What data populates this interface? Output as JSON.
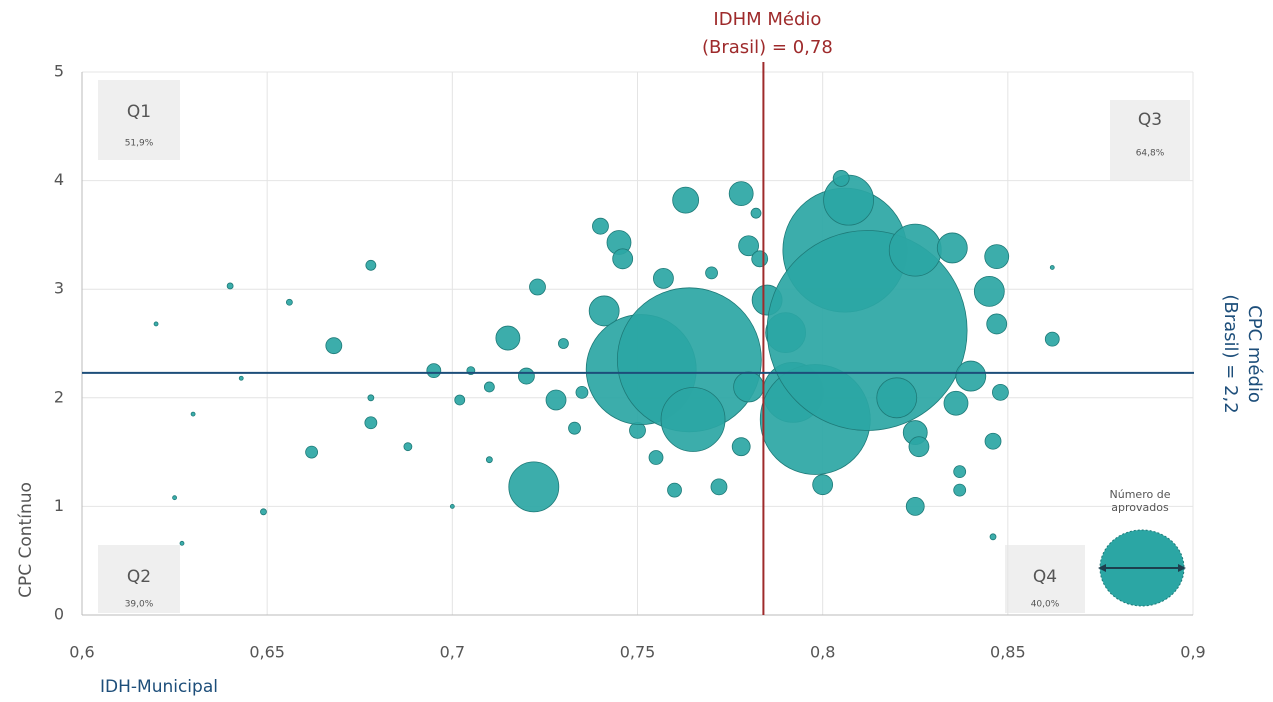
{
  "chart_data": {
    "type": "scatter",
    "x_label": "IDH-Municipal",
    "y_label": "CPC Contínuo",
    "xlim": [
      0.6,
      0.9
    ],
    "ylim": [
      0,
      5
    ],
    "xticks": [
      {
        "value": 0.6,
        "label": "0,6"
      },
      {
        "value": 0.65,
        "label": "0,65"
      },
      {
        "value": 0.7,
        "label": "0,7"
      },
      {
        "value": 0.75,
        "label": "0,75"
      },
      {
        "value": 0.8,
        "label": "0,8"
      },
      {
        "value": 0.85,
        "label": "0,85"
      },
      {
        "value": 0.9,
        "label": "0,9"
      }
    ],
    "yticks": [
      0,
      1,
      2,
      3,
      4,
      5
    ],
    "grid": true,
    "color": "#2ba6a4",
    "x": [
      0.62,
      0.625,
      0.627,
      0.63,
      0.64,
      0.643,
      0.649,
      0.656,
      0.662,
      0.668,
      0.678,
      0.678,
      0.678,
      0.688,
      0.695,
      0.7,
      0.702,
      0.705,
      0.71,
      0.715,
      0.72,
      0.722,
      0.723,
      0.728,
      0.733,
      0.735,
      0.74,
      0.741,
      0.745,
      0.746,
      0.75,
      0.751,
      0.755,
      0.76,
      0.763,
      0.764,
      0.765,
      0.77,
      0.772,
      0.778,
      0.778,
      0.78,
      0.782,
      0.783,
      0.785,
      0.79,
      0.792,
      0.798,
      0.8,
      0.806,
      0.807,
      0.805,
      0.812,
      0.825,
      0.825,
      0.826,
      0.825,
      0.835,
      0.836,
      0.837,
      0.837,
      0.84,
      0.845,
      0.847,
      0.847,
      0.846,
      0.848,
      0.846,
      0.862,
      0.862,
      0.73,
      0.71,
      0.757,
      0.82,
      0.78
    ],
    "y": [
      2.68,
      1.08,
      0.66,
      1.85,
      3.03,
      2.18,
      0.95,
      2.88,
      1.5,
      2.48,
      3.22,
      1.77,
      2.0,
      1.55,
      2.25,
      1.0,
      1.98,
      2.25,
      1.43,
      2.55,
      2.2,
      1.18,
      3.02,
      1.98,
      1.72,
      2.05,
      3.58,
      2.8,
      3.43,
      3.28,
      1.7,
      2.26,
      1.45,
      1.15,
      3.82,
      2.35,
      1.8,
      3.15,
      1.18,
      3.88,
      1.55,
      3.4,
      3.7,
      3.28,
      2.9,
      2.6,
      2.05,
      1.8,
      1.2,
      3.36,
      3.82,
      4.02,
      2.62,
      3.36,
      1.68,
      1.55,
      1.0,
      3.38,
      1.95,
      1.15,
      1.32,
      2.2,
      2.98,
      2.68,
      3.3,
      1.6,
      2.05,
      0.72,
      2.54,
      3.2,
      2.5,
      2.1,
      3.1,
      2.0,
      2.1
    ],
    "sizes": [
      4,
      4,
      4,
      4,
      9,
      4,
      9,
      9,
      36,
      64,
      25,
      36,
      9,
      16,
      49,
      4,
      25,
      16,
      9,
      144,
      64,
      625,
      64,
      100,
      36,
      36,
      64,
      225,
      144,
      100,
      64,
      3025,
      49,
      49,
      169,
      5184,
      1024,
      36,
      64,
      144,
      81,
      100,
      25,
      64,
      225,
      400,
      900,
      3025,
      100,
      3844,
      625,
      64,
      10000,
      676,
      144,
      100,
      81,
      225,
      144,
      36,
      36,
      225,
      225,
      100,
      144,
      64,
      64,
      9,
      49,
      4,
      25,
      25,
      100,
      400,
      225
    ],
    "reference_x": {
      "value": 0.784,
      "label": [
        "IDHM Médio",
        "(Brasil) = 0,78"
      ],
      "color": "#9e2a2b"
    },
    "reference_y": {
      "value": 2.23,
      "label": [
        "CPC médio",
        "(Brasil) = 2,2"
      ],
      "color": "#1d4e7a"
    },
    "quadrants": [
      {
        "name": "Q1",
        "share": "51,9%"
      },
      {
        "name": "Q2",
        "share": "39,0%"
      },
      {
        "name": "Q3",
        "share": "64,8%"
      },
      {
        "name": "Q4",
        "share": "40,0%"
      }
    ],
    "size_legend": [
      "Número de",
      "aprovados"
    ]
  }
}
